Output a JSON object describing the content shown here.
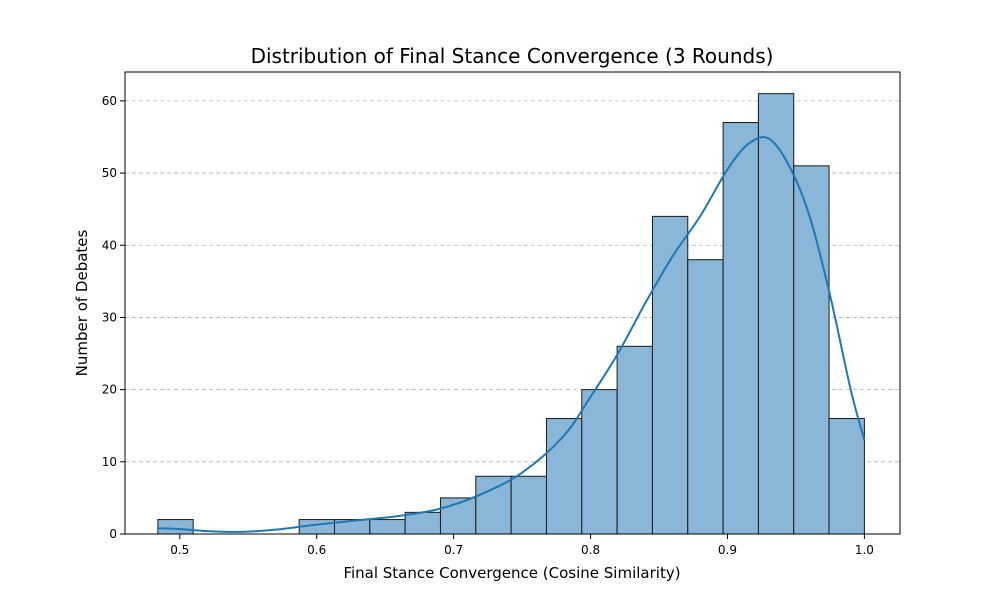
{
  "chart_data": {
    "type": "bar",
    "title": "Distribution of Final Stance Convergence (3 Rounds)",
    "xlabel": "Final Stance Convergence (Cosine Similarity)",
    "ylabel": "Number of Debates",
    "xlim": [
      0.46,
      1.026
    ],
    "ylim": [
      0,
      64
    ],
    "xticks": [
      0.5,
      0.6,
      0.7,
      0.8,
      0.9,
      1.0
    ],
    "xtick_labels": [
      "0.5",
      "0.6",
      "0.7",
      "0.8",
      "0.9",
      "1.0"
    ],
    "yticks": [
      0,
      10,
      20,
      30,
      40,
      50,
      60
    ],
    "ytick_labels": [
      "0",
      "10",
      "20",
      "30",
      "40",
      "50",
      "60"
    ],
    "grid": "y-dashed",
    "bin_edges": [
      0.484,
      0.5098,
      0.5356,
      0.5614,
      0.5872,
      0.613,
      0.6388,
      0.6646,
      0.6904,
      0.7162,
      0.742,
      0.7678,
      0.7936,
      0.8194,
      0.8452,
      0.871,
      0.8968,
      0.9226,
      0.9484,
      0.9742,
      1.0
    ],
    "values": [
      2,
      0,
      0,
      0,
      2,
      2,
      2,
      3,
      5,
      8,
      8,
      16,
      20,
      26,
      44,
      38,
      57,
      61,
      51,
      16
    ],
    "kde": {
      "x": [
        0.484,
        0.5,
        0.52,
        0.545,
        0.57,
        0.6,
        0.63,
        0.66,
        0.69,
        0.72,
        0.75,
        0.78,
        0.8,
        0.82,
        0.84,
        0.86,
        0.88,
        0.9,
        0.915,
        0.93,
        0.945,
        0.96,
        0.975,
        0.99,
        1.0
      ],
      "y": [
        0.8,
        0.7,
        0.4,
        0.3,
        0.6,
        1.3,
        1.9,
        2.5,
        3.5,
        5.5,
        8.5,
        13.5,
        19,
        25,
        32,
        38.5,
        44,
        50.5,
        54,
        54.8,
        51,
        44,
        33,
        20,
        13
      ]
    },
    "bar_color": "#8ab6d8",
    "line_color": "#1f77b4"
  }
}
